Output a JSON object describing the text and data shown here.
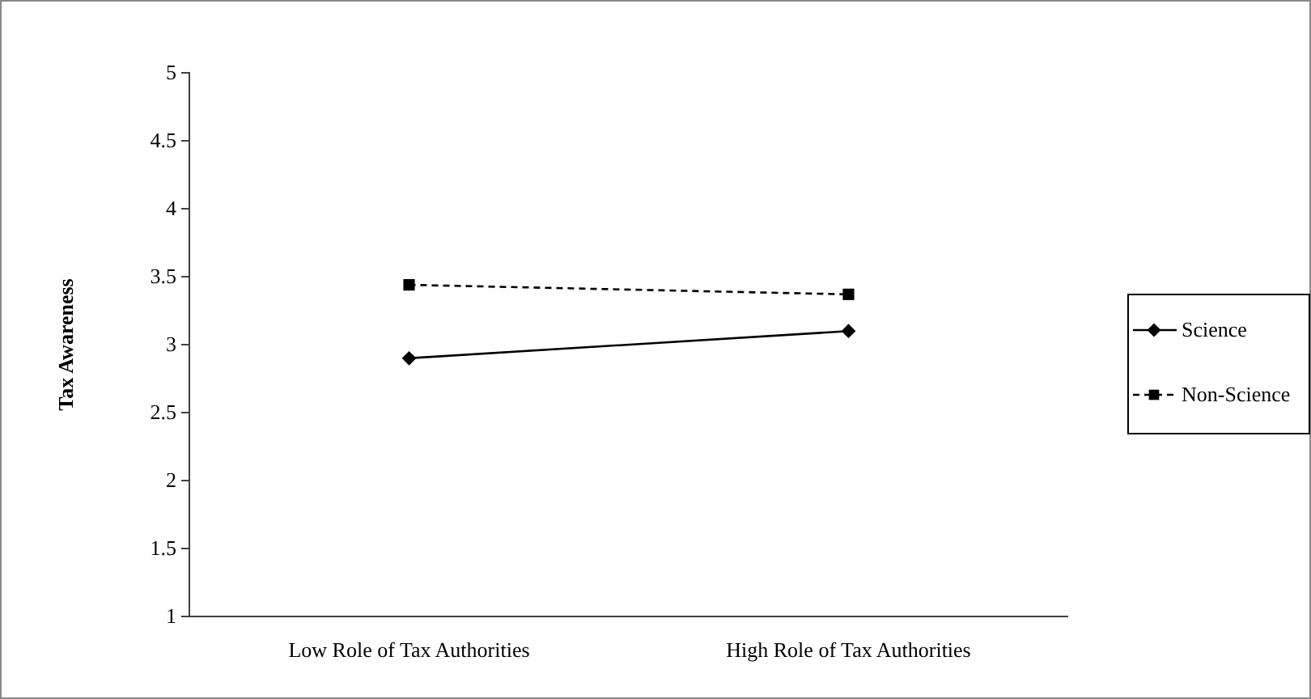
{
  "chart_data": {
    "type": "line",
    "ylabel": "Tax Awareness",
    "categories": [
      "Low Role of Tax Authorities",
      "High Role of Tax Authorities"
    ],
    "series": [
      {
        "name": "Science",
        "color": "#000000",
        "marker": "diamond",
        "line_style": "solid",
        "values": [
          2.9,
          3.1
        ]
      },
      {
        "name": "Non-Science",
        "color": "#000000",
        "marker": "square",
        "line_style": "dashed",
        "values": [
          3.44,
          3.37
        ]
      }
    ],
    "ylim": [
      1,
      5
    ],
    "yticks": [
      1,
      1.5,
      2,
      2.5,
      3,
      3.5,
      4,
      4.5,
      5
    ],
    "grid": false,
    "legend": "right"
  }
}
